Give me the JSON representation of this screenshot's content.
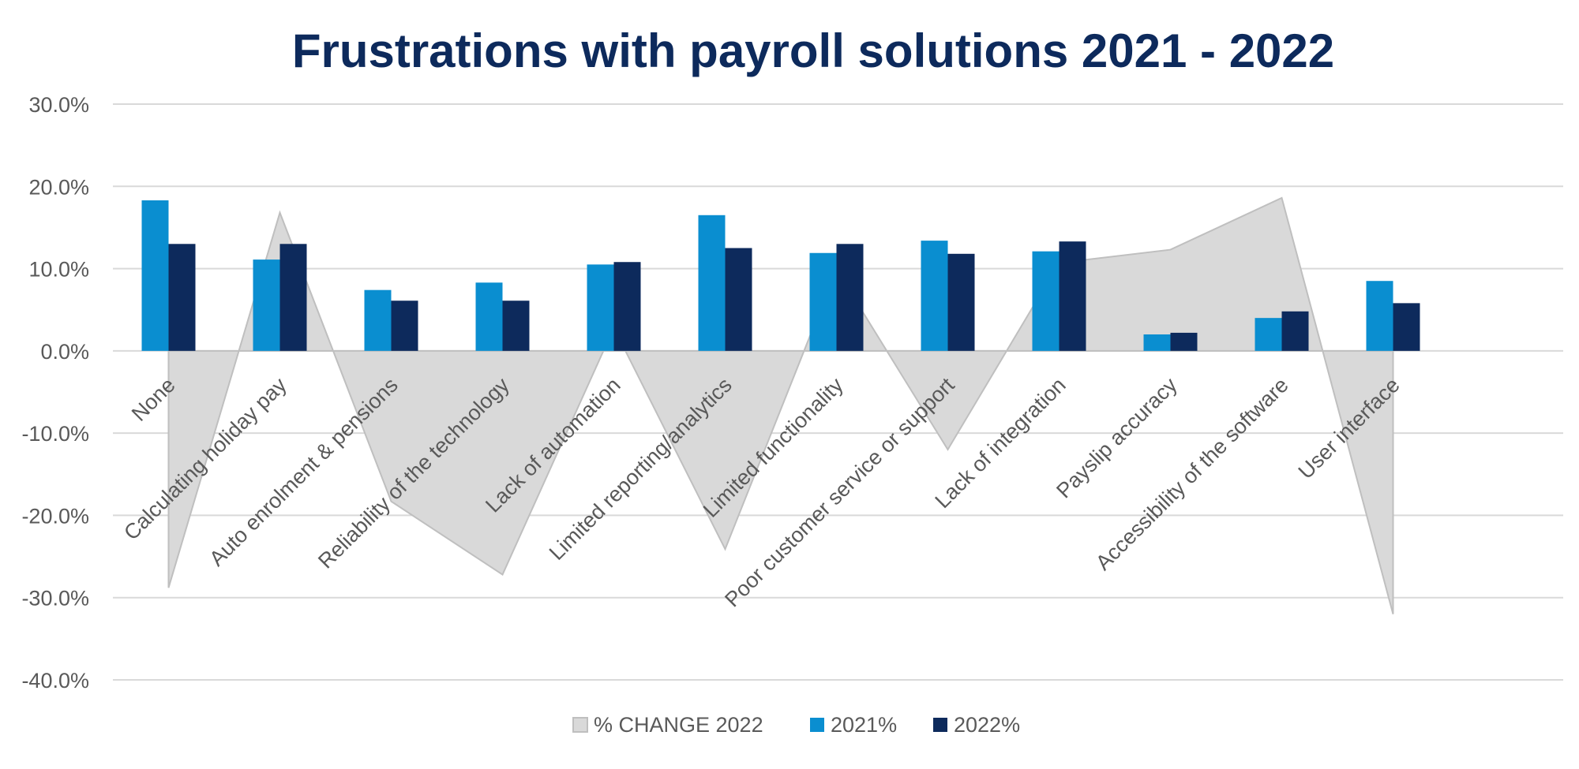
{
  "chart_data": {
    "type": "bar",
    "title": "Frustrations with payroll solutions 2021 - 2022",
    "ylim": [
      -40,
      30
    ],
    "yticks": [
      "30.0%",
      "20.0%",
      "10.0%",
      "0.0%",
      "-10.0%",
      "-20.0%",
      "-30.0%",
      "-40.0%"
    ],
    "ytick_values": [
      30,
      20,
      10,
      0,
      -10,
      -20,
      -30,
      -40
    ],
    "grid": true,
    "legend_position": "bottom",
    "categories": [
      "None",
      "Calculating holiday pay",
      "Auto enrolment & pensions",
      "Reliability of the technology",
      "Lack of automation",
      "Limited reporting/analytics",
      "Limited functionality",
      "Poor customer service or support",
      "Lack of integration",
      "Payslip accuracy",
      "Accessibility of the software",
      "User interface"
    ],
    "series": [
      {
        "name": "% CHANGE 2022",
        "type": "area",
        "color": "#d9d9d9",
        "values": [
          -28.8,
          16.8,
          -18.3,
          -27.2,
          2.8,
          -24.1,
          9.9,
          -12.0,
          10.7,
          12.3,
          18.6,
          -32.0
        ]
      },
      {
        "name": "2021%",
        "type": "bar",
        "color": "#0a8ed0",
        "values": [
          18.3,
          11.1,
          7.4,
          8.3,
          10.5,
          16.5,
          11.9,
          13.4,
          12.1,
          2.0,
          4.0,
          8.5
        ]
      },
      {
        "name": "2022%",
        "type": "bar",
        "color": "#0d2a5c",
        "values": [
          13.0,
          13.0,
          6.1,
          6.1,
          10.8,
          12.5,
          13.0,
          11.8,
          13.3,
          2.2,
          4.8,
          5.8
        ]
      }
    ]
  }
}
